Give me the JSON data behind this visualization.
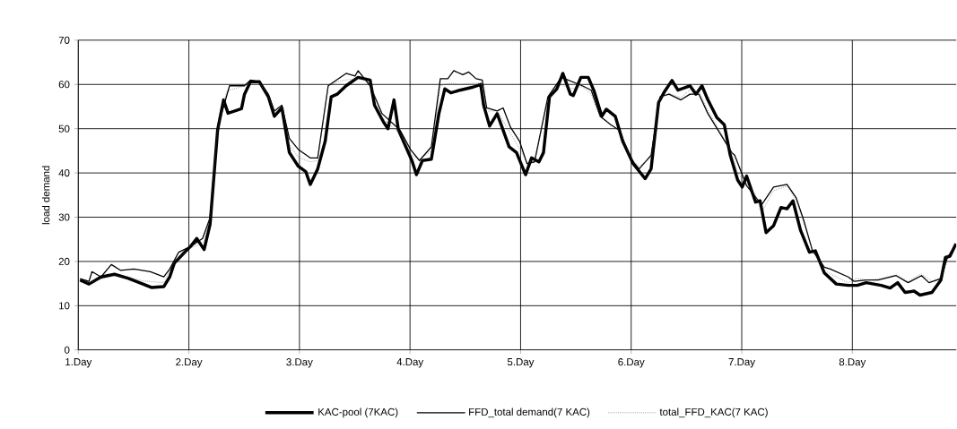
{
  "chart_data": {
    "type": "line",
    "ylabel": "load demand",
    "xlim": [
      1,
      8.94
    ],
    "ylim": [
      0,
      70
    ],
    "xticks": [
      {
        "value": 1,
        "label": "1.Day"
      },
      {
        "value": 2,
        "label": "2.Day"
      },
      {
        "value": 3,
        "label": "3.Day"
      },
      {
        "value": 4,
        "label": "4.Day"
      },
      {
        "value": 5,
        "label": "5.Day"
      },
      {
        "value": 6,
        "label": "6.Day"
      },
      {
        "value": 7,
        "label": "7.Day"
      },
      {
        "value": 8,
        "label": "8.Day"
      }
    ],
    "yticks": [
      0,
      10,
      20,
      30,
      40,
      50,
      60,
      70
    ],
    "grid": true,
    "legend": "bottom",
    "marker": "none",
    "series": [
      {
        "name": "KAC-pool (7KAC)",
        "color": "#000000",
        "line_style": "solid",
        "x": [
          1.016,
          1.097,
          1.205,
          1.327,
          1.449,
          1.584,
          1.665,
          1.773,
          1.827,
          1.868,
          1.963,
          2.016,
          2.071,
          2.138,
          2.192,
          2.26,
          2.314,
          2.354,
          2.476,
          2.503,
          2.557,
          2.638,
          2.719,
          2.773,
          2.841,
          2.909,
          2.99,
          3.057,
          3.098,
          3.165,
          3.233,
          3.287,
          3.341,
          3.422,
          3.53,
          3.639,
          3.679,
          3.76,
          3.801,
          3.855,
          3.895,
          4.017,
          4.058,
          4.112,
          4.193,
          4.261,
          4.315,
          4.369,
          4.45,
          4.571,
          4.639,
          4.666,
          4.72,
          4.788,
          4.896,
          4.963,
          5.045,
          5.099,
          5.166,
          5.207,
          5.261,
          5.328,
          5.382,
          5.45,
          5.477,
          5.545,
          5.612,
          5.666,
          5.734,
          5.775,
          5.856,
          5.923,
          6.018,
          6.126,
          6.18,
          6.248,
          6.302,
          6.369,
          6.423,
          6.532,
          6.586,
          6.64,
          6.694,
          6.775,
          6.842,
          6.896,
          6.963,
          7.004,
          7.044,
          7.125,
          7.166,
          7.22,
          7.288,
          7.355,
          7.409,
          7.463,
          7.531,
          7.612,
          7.666,
          7.747,
          7.855,
          7.963,
          8.044,
          8.126,
          8.261,
          8.342,
          8.41,
          8.477,
          8.558,
          8.612,
          8.72,
          8.801,
          8.842,
          8.883,
          8.937
        ],
        "values": [
          15.8,
          14.9,
          16.5,
          17.1,
          16.2,
          14.9,
          14.1,
          14.3,
          16.5,
          19.6,
          22.1,
          23.4,
          25.2,
          22.7,
          28.4,
          49.7,
          56.5,
          53.5,
          54.5,
          57.8,
          60.6,
          60.6,
          57.2,
          52.8,
          54.7,
          44.6,
          41.5,
          40.3,
          37.4,
          40.9,
          47.2,
          57.2,
          57.8,
          59.7,
          61.6,
          61,
          55.3,
          51.5,
          50,
          56.5,
          49.7,
          42.8,
          39.6,
          42.8,
          43.1,
          53.4,
          59,
          58.1,
          58.7,
          59.4,
          60,
          55.3,
          50.6,
          53.4,
          45.9,
          44.6,
          39.6,
          43.4,
          42.5,
          44.6,
          57.2,
          59,
          62.5,
          57.8,
          57.5,
          61.6,
          61.6,
          58.4,
          52.8,
          54.4,
          52.8,
          47.2,
          42.1,
          38.7,
          40.9,
          55.9,
          58.4,
          60.9,
          58.7,
          59.7,
          57.8,
          59.7,
          56.5,
          52.5,
          50.9,
          44,
          38.4,
          36.8,
          39.3,
          33.4,
          33.7,
          26.5,
          28.1,
          32.2,
          31.9,
          33.7,
          27.1,
          22.1,
          22.4,
          17.4,
          14.9,
          14.6,
          14.6,
          15.2,
          14.6,
          14,
          15.2,
          13,
          13.3,
          12.4,
          13,
          15.8,
          20.9,
          21.2,
          24
        ]
      },
      {
        "name": "FFD_total demand(7 KAC)",
        "color": "#000000",
        "line_style": "solid",
        "x": [
          1.016,
          1.097,
          1.124,
          1.205,
          1.299,
          1.381,
          1.503,
          1.652,
          1.773,
          1.827,
          1.908,
          2.016,
          2.124,
          2.192,
          2.26,
          2.368,
          2.503,
          2.557,
          2.638,
          2.719,
          2.773,
          2.841,
          2.909,
          2.99,
          3.098,
          3.165,
          3.26,
          3.422,
          3.503,
          3.53,
          3.639,
          3.747,
          3.909,
          4.004,
          4.085,
          4.193,
          4.274,
          4.342,
          4.396,
          4.477,
          4.531,
          4.598,
          4.653,
          4.693,
          4.788,
          4.842,
          4.909,
          4.99,
          5.058,
          5.126,
          5.247,
          5.369,
          5.558,
          5.639,
          5.72,
          5.815,
          5.896,
          5.99,
          6.072,
          6.18,
          6.261,
          6.342,
          6.45,
          6.532,
          6.613,
          6.694,
          6.802,
          6.91,
          6.936,
          7.044,
          7.18,
          7.288,
          7.409,
          7.49,
          7.558,
          7.639,
          7.747,
          7.801,
          7.963,
          8.017,
          8.126,
          8.234,
          8.396,
          8.504,
          8.626,
          8.693,
          8.801,
          8.856,
          8.937
        ],
        "values": [
          16.1,
          15.5,
          17.7,
          16.5,
          19.3,
          18,
          18.3,
          17.7,
          16.5,
          18.3,
          22.1,
          23.4,
          25.2,
          29.9,
          50.3,
          59.7,
          59.7,
          61,
          60.6,
          57.8,
          54,
          55.3,
          47.8,
          45.3,
          43.4,
          43.4,
          59.7,
          62.5,
          61.9,
          63.1,
          59.7,
          53.4,
          49.7,
          45.3,
          42.8,
          45.9,
          61.3,
          61.3,
          63.1,
          62.2,
          62.8,
          61.3,
          61,
          54.7,
          54,
          54.7,
          50.3,
          47.2,
          42.1,
          42.5,
          57.2,
          61.6,
          59.7,
          58.7,
          52.8,
          50.9,
          49.6,
          43.4,
          40.9,
          44,
          57.2,
          57.8,
          56.5,
          57.8,
          57.8,
          53.4,
          49,
          44.6,
          44,
          37.1,
          32.8,
          36.8,
          37.4,
          34.5,
          29.5,
          22.5,
          18.7,
          18.3,
          16.5,
          15.5,
          15.8,
          15.8,
          16.8,
          15.2,
          16.8,
          15.2,
          16.1,
          20.6,
          24
        ]
      },
      {
        "name": "total_FFD_KAC(7 KAC)",
        "color": "#505050",
        "line_style": "dotted",
        "x": [
          1.016,
          1.097,
          1.205,
          1.327,
          1.449,
          1.584,
          1.773,
          1.868,
          2.016,
          2.138,
          2.192,
          2.26,
          2.341,
          2.503,
          2.557,
          2.638,
          2.719,
          2.773,
          2.841,
          2.909,
          2.99,
          3.098,
          3.165,
          3.26,
          3.341,
          3.422,
          3.53,
          3.639,
          3.747,
          3.855,
          3.909,
          4.017,
          4.085,
          4.193,
          4.274,
          4.369,
          4.45,
          4.571,
          4.639,
          4.693,
          4.788,
          4.896,
          4.99,
          5.058,
          5.126,
          5.247,
          5.369,
          5.45,
          5.558,
          5.639,
          5.72,
          5.815,
          5.896,
          5.99,
          6.072,
          6.18,
          6.261,
          6.342,
          6.45,
          6.532,
          6.613,
          6.694,
          6.802,
          6.91,
          6.963,
          7.044,
          7.125,
          7.18,
          7.22,
          7.288,
          7.409,
          7.49,
          7.558,
          7.639,
          7.747,
          7.855,
          7.963,
          8.044,
          8.126,
          8.234,
          8.396,
          8.504,
          8.626,
          8.72,
          8.801,
          8.856,
          8.937
        ],
        "values": [
          16,
          15.2,
          16,
          16.8,
          16.5,
          15.6,
          15.2,
          20,
          23,
          24.5,
          30,
          50,
          58.5,
          59.7,
          60.3,
          60.3,
          57.5,
          53.5,
          55,
          46.5,
          43.5,
          42.5,
          42.8,
          59.7,
          60.6,
          61,
          61.3,
          60.6,
          52.5,
          50,
          49,
          44,
          43,
          45,
          59.7,
          60.3,
          60,
          60.3,
          60.3,
          54,
          54,
          49.5,
          45.5,
          42.5,
          42.8,
          56.5,
          60,
          59,
          59.5,
          57.8,
          52.5,
          51,
          49.5,
          43.5,
          41.5,
          43.5,
          57,
          58,
          57,
          58.8,
          58.5,
          54,
          49.5,
          44.5,
          40,
          37.5,
          35,
          31,
          33,
          36,
          37,
          34,
          29,
          22.5,
          18,
          16.5,
          15.2,
          16.2,
          15.8,
          16,
          17,
          15.5,
          17.2,
          15.5,
          16.5,
          21,
          24
        ]
      }
    ]
  }
}
